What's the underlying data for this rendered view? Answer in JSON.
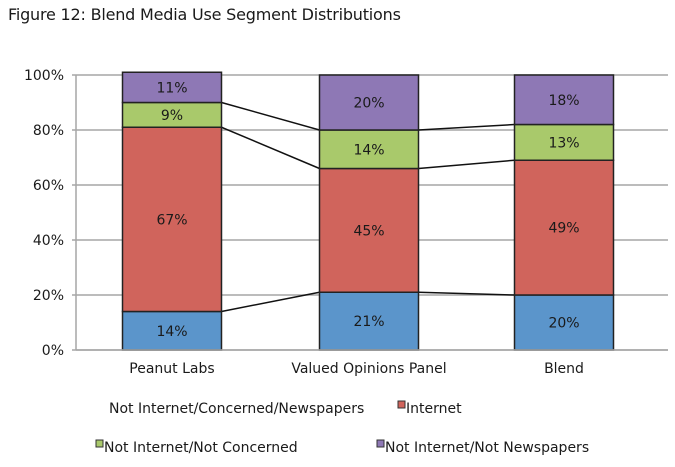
{
  "chart_data": {
    "type": "bar",
    "stacked": true,
    "percent": true,
    "title": "Figure 12: Blend Media Use Segment Distributions",
    "xlabel": "",
    "ylabel": "",
    "ylim": [
      0,
      100
    ],
    "yticks": [
      "0%",
      "20%",
      "40%",
      "60%",
      "80%",
      "100%"
    ],
    "yticks_values": [
      0,
      20,
      40,
      60,
      80,
      100
    ],
    "grid": true,
    "connector_lines": true,
    "categories": [
      "Peanut Labs",
      "Valued Opinions Panel",
      "Blend"
    ],
    "series": [
      {
        "name": "Not Internet/Concerned/Newspapers",
        "color": "#5b95cb",
        "values": [
          14,
          21,
          20
        ],
        "labels": [
          "14%",
          "21%",
          "20%"
        ],
        "legend_swatch": false
      },
      {
        "name": "Internet",
        "color": "#d0645c",
        "values": [
          67,
          45,
          49
        ],
        "labels": [
          "67%",
          "45%",
          "49%"
        ],
        "legend_swatch": true
      },
      {
        "name": "Not Internet/Not Concerned",
        "color": "#a9c96b",
        "values": [
          9,
          14,
          13
        ],
        "labels": [
          "9%",
          "14%",
          "13%"
        ],
        "legend_swatch": true
      },
      {
        "name": "Not Internet/Not Newspapers",
        "color": "#8e78b5",
        "values": [
          11,
          20,
          18
        ],
        "labels": [
          "11%",
          "20%",
          "18%"
        ],
        "legend_swatch": true
      }
    ],
    "legend_position": "bottom"
  }
}
